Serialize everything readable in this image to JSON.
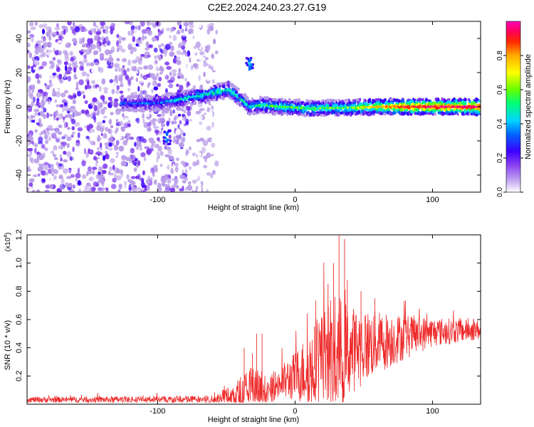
{
  "figure": {
    "title": "C2E2.2024.240.23.27.G19"
  },
  "chart_data": [
    {
      "type": "heatmap",
      "xlabel": "Height of straight line (km)",
      "ylabel": "Frequency (Hz)",
      "xlim": [
        -195,
        135
      ],
      "ylim": [
        -50,
        50
      ],
      "x_ticks": [
        -100,
        0,
        100
      ],
      "y_ticks": [
        -40,
        -20,
        0,
        20,
        40
      ],
      "colorbar": {
        "label": "Normalized spectral amplitude",
        "range": [
          0,
          1
        ],
        "ticks": [
          "0.0",
          "0.2",
          "0.4",
          "0.6",
          "0.8"
        ],
        "colors": [
          "#ffffff",
          "#b89be8",
          "#7a32f0",
          "#3a00ff",
          "#0066ff",
          "#00d5ff",
          "#00ff77",
          "#66ff00",
          "#ffff00",
          "#ffaa00",
          "#ff2a00",
          "#ff0055",
          "#ff00bb"
        ]
      },
      "noise_region": {
        "x_range": [
          -195,
          -57
        ],
        "freq_range": [
          -50,
          50
        ]
      },
      "main_ridge": [
        {
          "x": -127,
          "f": 2,
          "amp": 0.35
        },
        {
          "x": -100,
          "f": 2,
          "amp": 0.35
        },
        {
          "x": -85,
          "f": 4,
          "amp": 0.45
        },
        {
          "x": -60,
          "f": 8,
          "amp": 0.5
        },
        {
          "x": -48,
          "f": 10,
          "amp": 0.5
        },
        {
          "x": -40,
          "f": 5,
          "amp": 0.5
        },
        {
          "x": -33,
          "f": 0,
          "amp": 0.45
        },
        {
          "x": -25,
          "f": 1,
          "amp": 0.5
        },
        {
          "x": -10,
          "f": 0,
          "amp": 0.55
        },
        {
          "x": 10,
          "f": -1,
          "amp": 0.55
        },
        {
          "x": 40,
          "f": -0.5,
          "amp": 0.6
        },
        {
          "x": 60,
          "f": 0,
          "amp": 0.75
        },
        {
          "x": 80,
          "f": 0,
          "amp": 0.9
        },
        {
          "x": 135,
          "f": 0,
          "amp": 0.95
        }
      ],
      "features": [
        {
          "x": -33,
          "f": 25,
          "amp": 0.4
        },
        {
          "x": -93,
          "f": -18,
          "amp": 0.4
        }
      ]
    },
    {
      "type": "line",
      "xlabel": "Height of straight line (km)",
      "ylabel": "SNR (10 * v/v)",
      "y_multiplier": "(x10^4)",
      "xlim": [
        -195,
        135
      ],
      "ylim": [
        0,
        1.2
      ],
      "x_ticks": [
        -100,
        0,
        100
      ],
      "y_ticks": [
        0.2,
        0.4,
        0.6,
        0.8,
        1.0,
        1.2
      ],
      "series": [
        {
          "color": "#ee2a2a",
          "envelope": [
            {
              "x": -195,
              "base": 0.03,
              "spread": 0.03
            },
            {
              "x": -150,
              "base": 0.03,
              "spread": 0.03
            },
            {
              "x": -100,
              "base": 0.03,
              "spread": 0.04
            },
            {
              "x": -60,
              "base": 0.03,
              "spread": 0.04
            },
            {
              "x": -45,
              "base": 0.05,
              "spread": 0.12
            },
            {
              "x": -30,
              "base": 0.08,
              "spread": 0.3
            },
            {
              "x": -22,
              "base": 0.05,
              "spread": 0.12
            },
            {
              "x": -15,
              "base": 0.12,
              "spread": 0.15
            },
            {
              "x": 0,
              "base": 0.18,
              "spread": 0.25
            },
            {
              "x": 15,
              "base": 0.25,
              "spread": 0.45
            },
            {
              "x": 30,
              "base": 0.3,
              "spread": 0.65
            },
            {
              "x": 40,
              "base": 0.35,
              "spread": 0.45
            },
            {
              "x": 55,
              "base": 0.4,
              "spread": 0.35
            },
            {
              "x": 75,
              "base": 0.45,
              "spread": 0.25
            },
            {
              "x": 100,
              "base": 0.5,
              "spread": 0.15
            },
            {
              "x": 135,
              "base": 0.52,
              "spread": 0.1
            }
          ],
          "peaks": [
            {
              "x": -37,
              "y": 0.4
            },
            {
              "x": -31,
              "y": 0.36
            },
            {
              "x": -28,
              "y": 0.5
            },
            {
              "x": -24,
              "y": 0.5
            },
            {
              "x": 14,
              "y": 0.55
            },
            {
              "x": 24,
              "y": 0.85
            },
            {
              "x": 28,
              "y": 1.0
            },
            {
              "x": 32,
              "y": 1.2
            },
            {
              "x": 36,
              "y": 1.17
            },
            {
              "x": 38,
              "y": 0.88
            },
            {
              "x": 48,
              "y": 0.8
            },
            {
              "x": 58,
              "y": 0.75
            }
          ]
        }
      ]
    }
  ]
}
